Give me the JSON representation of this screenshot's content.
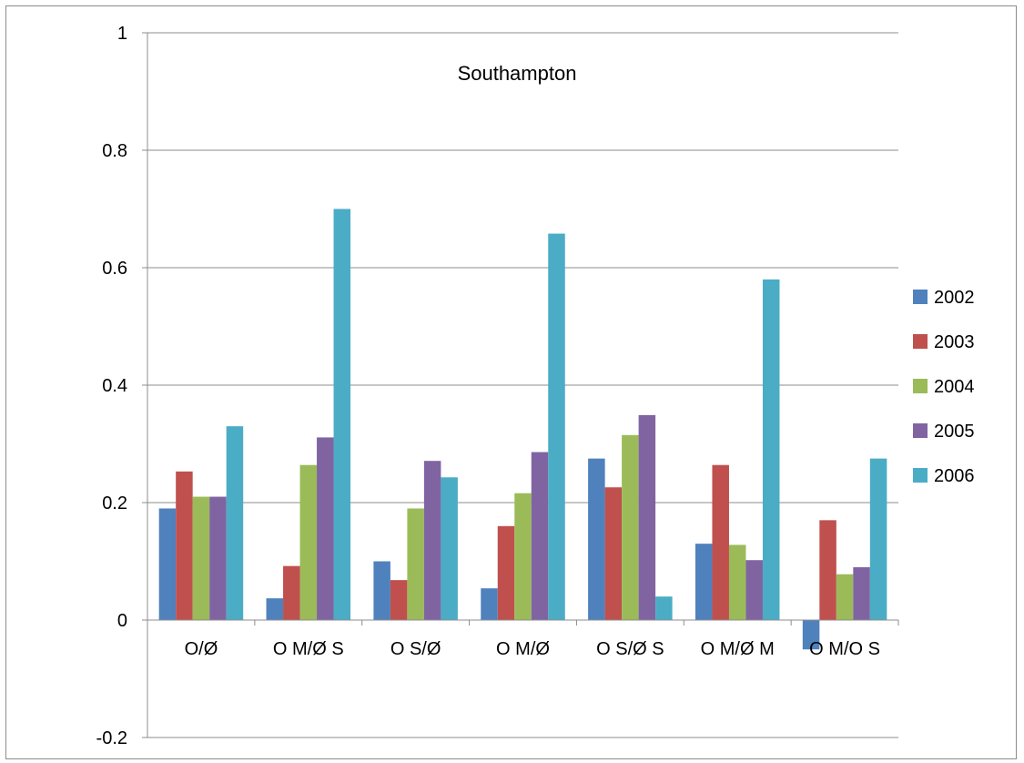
{
  "chart_data": {
    "type": "bar",
    "title": "Southampton",
    "xlabel": "",
    "ylabel": "",
    "ylim": [
      -0.2,
      1
    ],
    "yticks": [
      -0.2,
      0,
      0.2,
      0.4,
      0.6,
      0.8,
      1
    ],
    "ytick_labels": [
      "-0.2",
      "0",
      "0.2",
      "0.4",
      "0.6",
      "0.8",
      "1"
    ],
    "grid": true,
    "legend_position": "right",
    "categories": [
      "O/Ø",
      "O M/Ø S",
      "O S/Ø",
      "O M/Ø",
      "O S/Ø S",
      "O M/Ø M",
      "O M/O S"
    ],
    "series": [
      {
        "name": "2002",
        "color": "#4F81BD",
        "values": [
          0.19,
          0.037,
          0.1,
          0.054,
          0.275,
          0.13,
          -0.05
        ]
      },
      {
        "name": "2003",
        "color": "#C0504D",
        "values": [
          0.253,
          0.092,
          0.068,
          0.16,
          0.226,
          0.264,
          0.17
        ]
      },
      {
        "name": "2004",
        "color": "#9BBB59",
        "values": [
          0.21,
          0.264,
          0.19,
          0.216,
          0.315,
          0.128,
          0.078
        ]
      },
      {
        "name": "2005",
        "color": "#8064A2",
        "values": [
          0.21,
          0.311,
          0.271,
          0.286,
          0.349,
          0.102,
          0.09
        ]
      },
      {
        "name": "2006",
        "color": "#4BACC6",
        "values": [
          0.33,
          0.7,
          0.243,
          0.658,
          0.04,
          0.58,
          0.275
        ]
      }
    ]
  }
}
